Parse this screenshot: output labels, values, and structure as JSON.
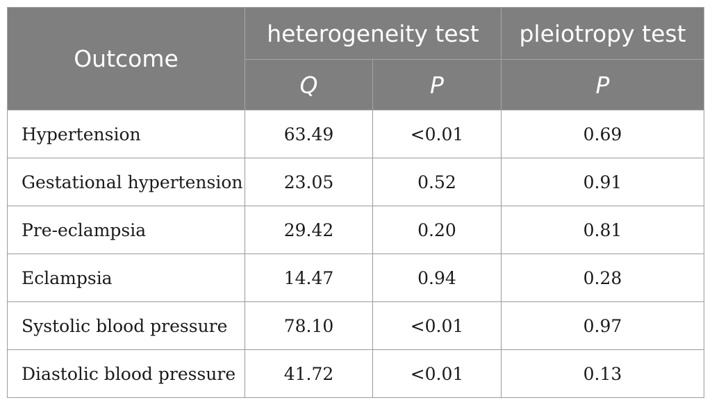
{
  "table": {
    "header": {
      "outcome": "Outcome",
      "heterogeneity_group": "heterogeneity test",
      "pleiotropy_group": "pleiotropy test",
      "q": "Q",
      "p_heterogeneity": "P",
      "p_pleiotropy": "P"
    },
    "rows": [
      {
        "outcome": "Hypertension",
        "q": "63.49",
        "p_het": "<0.01",
        "p_pleio": "0.69"
      },
      {
        "outcome": "Gestational hypertension",
        "q": "23.05",
        "p_het": "0.52",
        "p_pleio": "0.91"
      },
      {
        "outcome": "Pre-eclampsia",
        "q": "29.42",
        "p_het": "0.20",
        "p_pleio": "0.81"
      },
      {
        "outcome": "Eclampsia",
        "q": "14.47",
        "p_het": "0.94",
        "p_pleio": "0.28"
      },
      {
        "outcome": "Systolic blood pressure",
        "q": "78.10",
        "p_het": "<0.01",
        "p_pleio": "0.97"
      },
      {
        "outcome": "Diastolic blood pressure",
        "q": "41.72",
        "p_het": "<0.01",
        "p_pleio": "0.13"
      }
    ]
  }
}
